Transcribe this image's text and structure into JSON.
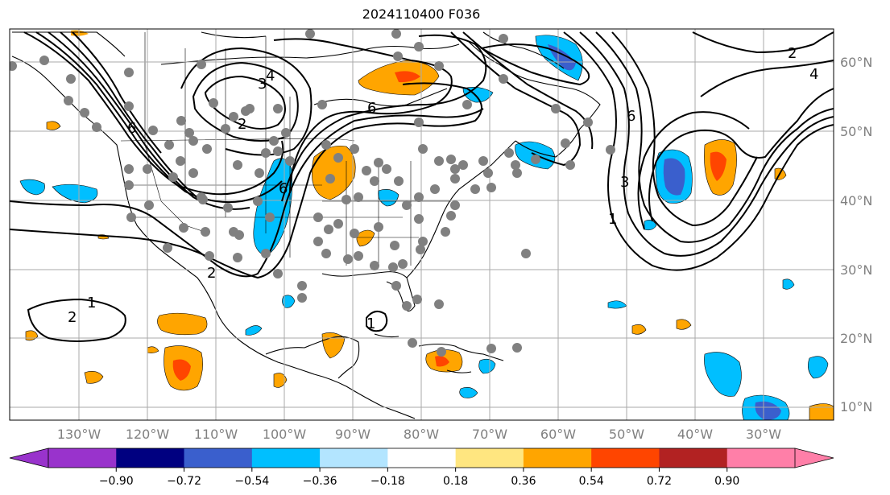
{
  "title": "2024110400 F036",
  "lon_labels": [
    "130°W",
    "120°W",
    "110°W",
    "100°W",
    "90°W",
    "80°W",
    "70°W",
    "60°W",
    "50°W",
    "40°W",
    "30°W"
  ],
  "lat_labels": [
    "60°N",
    "50°N",
    "40°N",
    "30°N",
    "20°N",
    "10°N"
  ],
  "contour_labels": [
    "1",
    "2",
    "2",
    "3",
    "4",
    "6",
    "6",
    "6",
    "1",
    "3",
    "6",
    "4",
    "2",
    "1",
    "2"
  ],
  "colorbar": {
    "ticks": [
      "−0.90",
      "−0.72",
      "−0.54",
      "−0.36",
      "−0.18",
      "0.18",
      "0.36",
      "0.54",
      "0.72",
      "0.90"
    ],
    "colors": {
      "under": "#9933cc",
      "bins": [
        "#000080",
        "#3a5fcd",
        "#00bfff",
        "#b3e5ff",
        "#ffffff",
        "#ffe680",
        "#ffa500",
        "#ff4500",
        "#b22222"
      ],
      "over": "#ff7fa8"
    }
  }
}
